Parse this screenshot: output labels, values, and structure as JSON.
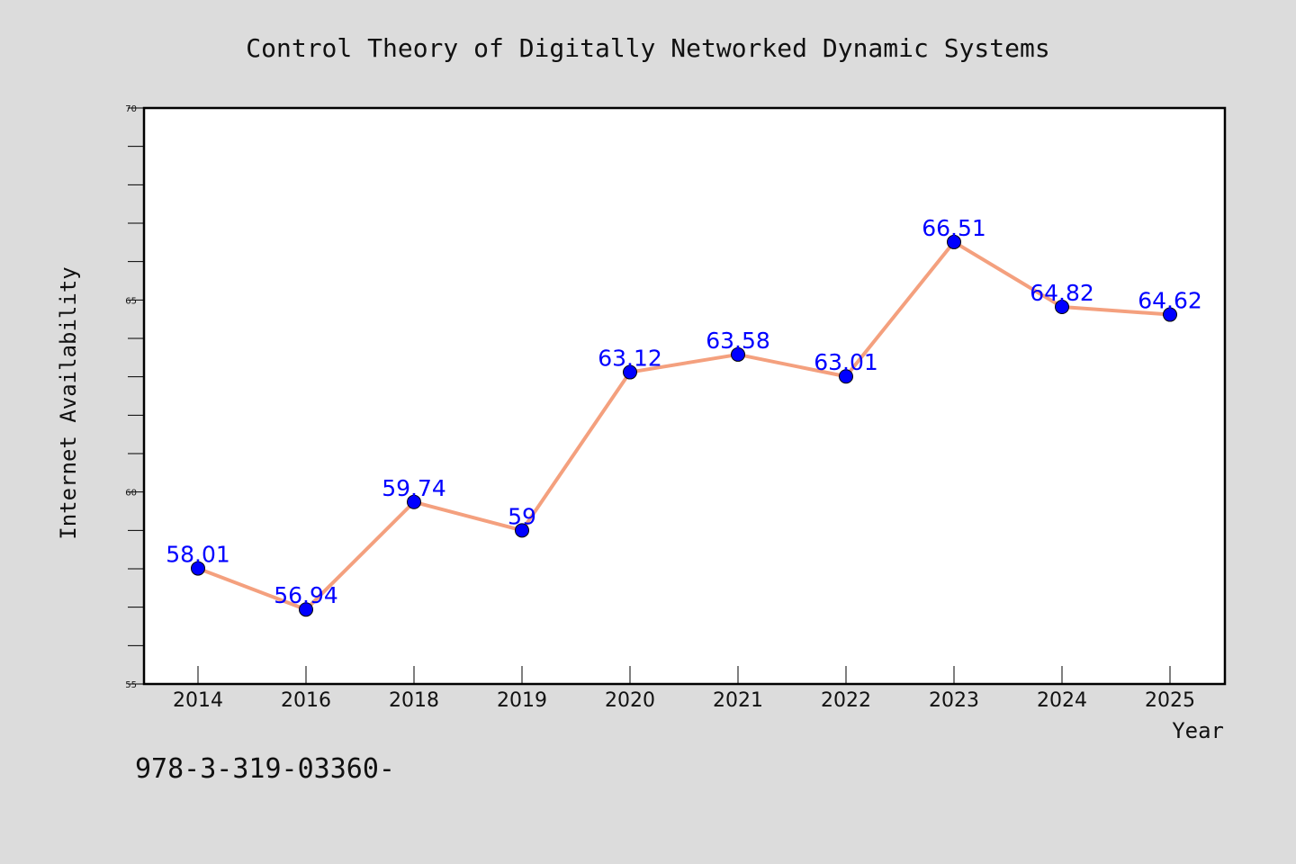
{
  "chart_data": {
    "type": "line",
    "title": "Control Theory of Digitally Networked Dynamic Systems",
    "xlabel": "Year",
    "ylabel": "Internet Availability",
    "categories": [
      "2014",
      "2016",
      "2018",
      "2019",
      "2020",
      "2021",
      "2022",
      "2023",
      "2024",
      "2025"
    ],
    "series": [
      {
        "values": [
          58.01,
          56.94,
          59.74,
          59.0,
          63.12,
          63.58,
          63.01,
          66.51,
          64.82,
          64.62
        ],
        "labels": [
          "58.01",
          "56.94",
          "59.74",
          "59",
          "63.12",
          "63.58",
          "63.01",
          "66.51",
          "64.82",
          "64.62"
        ]
      }
    ],
    "ylim": [
      55,
      70
    ],
    "yticks": [
      "55",
      "60",
      "65",
      "70"
    ],
    "grid": false,
    "line_color": "#f4a07e",
    "marker_color": "#0000ff",
    "label_color": "#0000ff"
  },
  "footer_text": "978-3-319-03360-"
}
